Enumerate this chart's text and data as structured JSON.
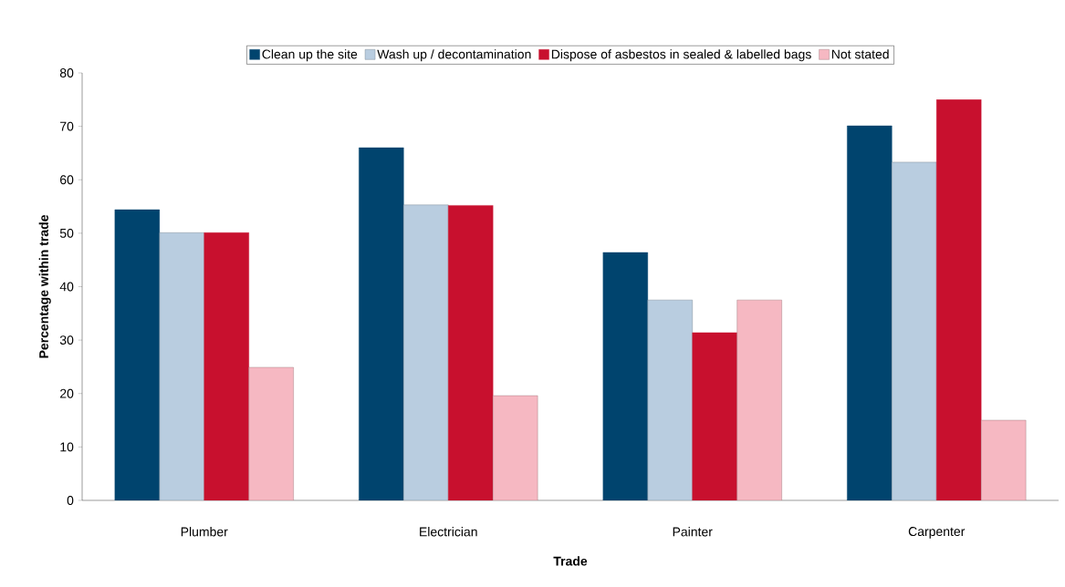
{
  "chart_data": {
    "type": "bar",
    "xlabel": "Trade",
    "ylabel": "Percentage within trade",
    "categories": [
      "Plumber",
      "Electrician",
      "Painter",
      "Carpenter"
    ],
    "series": [
      {
        "name": "Clean up the site",
        "color": "#00446e",
        "values": [
          54.4,
          66.0,
          46.4,
          70.1
        ]
      },
      {
        "name": "Wash up / decontamination",
        "color": "#b9cde0",
        "values": [
          50.1,
          55.3,
          37.5,
          63.3
        ]
      },
      {
        "name": "Dispose of asbestos in sealed & labelled bags",
        "color": "#c8102e",
        "values": [
          50.1,
          55.2,
          31.4,
          75.0
        ]
      },
      {
        "name": "Not stated",
        "color": "#f6b8c2",
        "values": [
          24.9,
          19.6,
          37.5,
          15.0
        ]
      }
    ],
    "ylim": [
      0,
      80
    ],
    "yticks": [
      0,
      10,
      20,
      30,
      40,
      50,
      60,
      70,
      80
    ],
    "grid": false,
    "legend": "top"
  }
}
